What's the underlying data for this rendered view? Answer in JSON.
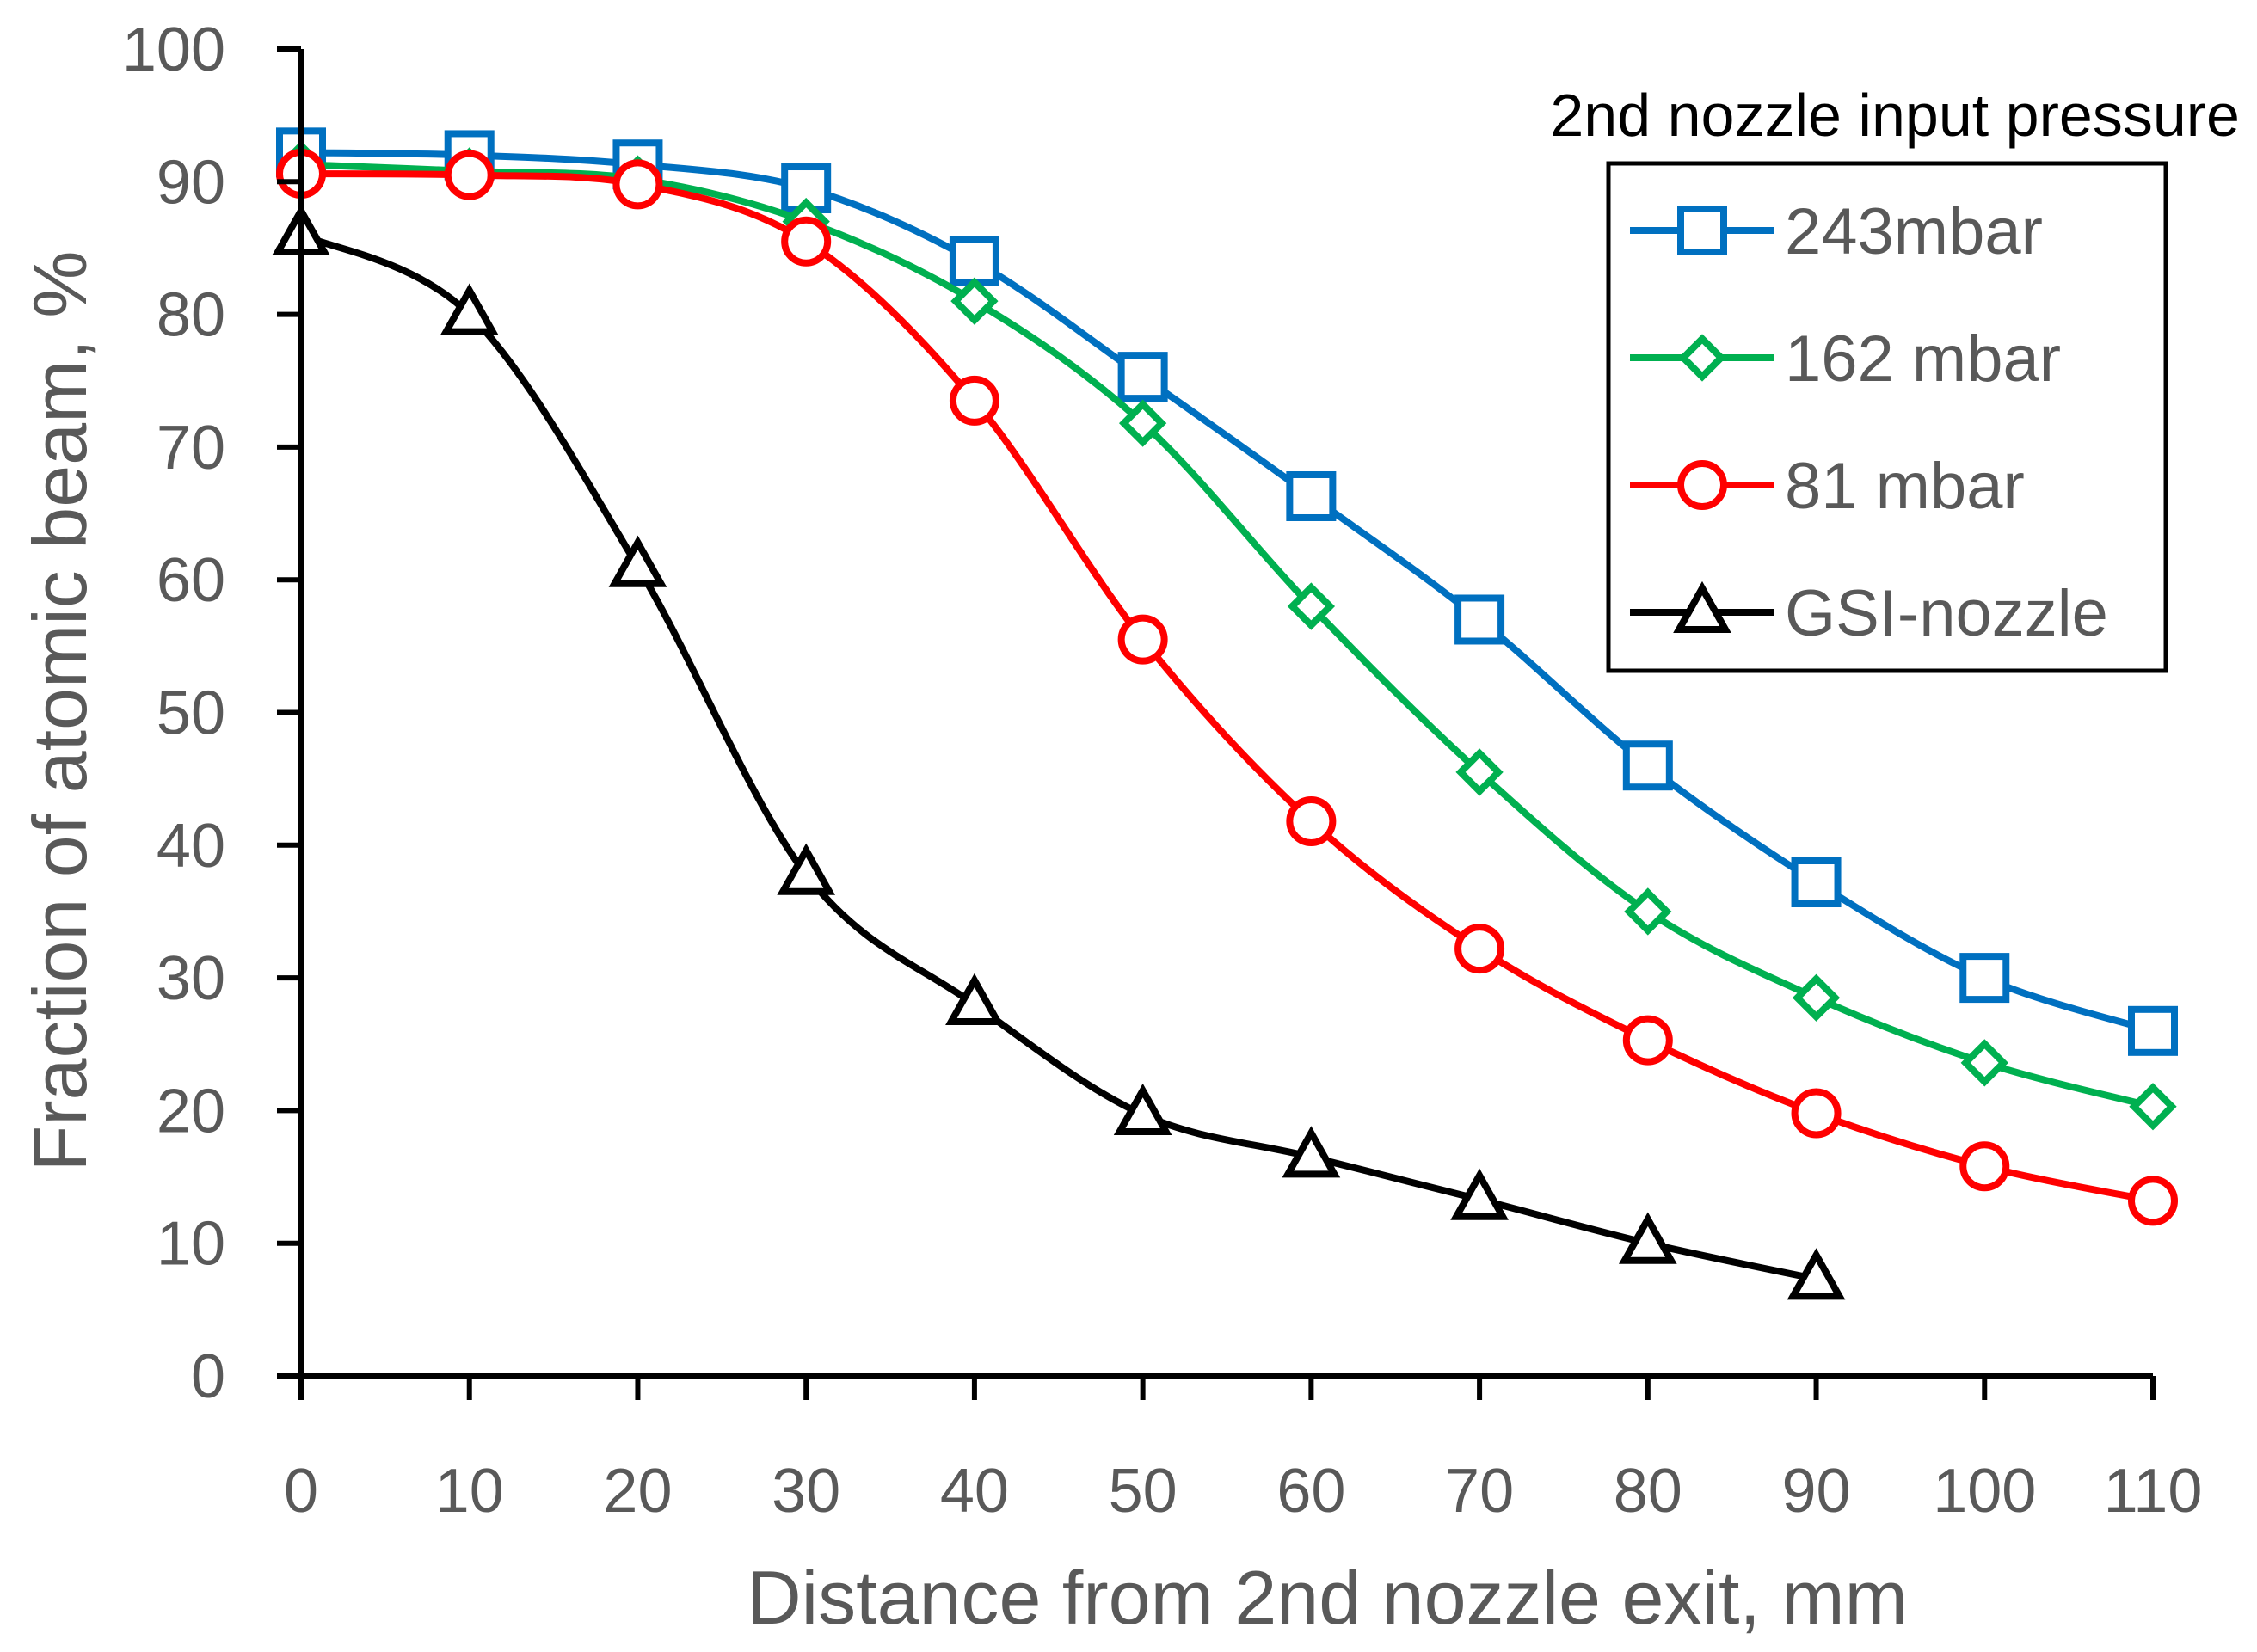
{
  "chart_data": {
    "type": "line",
    "title": "",
    "xlabel": "Distance from 2nd nozzle exit,  mm",
    "ylabel": "Fraction of atomic beam,  %",
    "xlim": [
      0,
      110
    ],
    "ylim": [
      0,
      100
    ],
    "xticks": [
      0,
      10,
      20,
      30,
      40,
      50,
      60,
      70,
      80,
      90,
      100,
      110
    ],
    "yticks": [
      0,
      10,
      20,
      30,
      40,
      50,
      60,
      70,
      80,
      90,
      100
    ],
    "grid": false,
    "legend_title": "2nd nozzle input pressure",
    "legend_position": "top-right",
    "series": [
      {
        "name": "243mbar",
        "color": "#0070C0",
        "marker": "square",
        "x": [
          0,
          10,
          20,
          30,
          40,
          50,
          60,
          70,
          80,
          90,
          100,
          110
        ],
        "values": [
          92.2,
          92.0,
          91.3,
          89.5,
          84.0,
          75.3,
          66.3,
          57.0,
          46.0,
          37.2,
          30.0,
          26.0
        ]
      },
      {
        "name": "162 mbar",
        "color": "#00B050",
        "marker": "diamond",
        "x": [
          0,
          10,
          20,
          30,
          40,
          50,
          60,
          70,
          80,
          90,
          100,
          110
        ],
        "values": [
          91.3,
          90.8,
          90.2,
          87.0,
          81.0,
          71.8,
          58.0,
          45.5,
          35.0,
          28.5,
          23.6,
          20.3
        ]
      },
      {
        "name": "81 mbar",
        "color": "#FF0000",
        "marker": "circle",
        "x": [
          0,
          10,
          20,
          30,
          40,
          50,
          60,
          70,
          80,
          90,
          100,
          110
        ],
        "values": [
          90.6,
          90.5,
          89.8,
          85.5,
          73.5,
          55.5,
          41.8,
          32.2,
          25.3,
          19.8,
          15.8,
          13.2
        ]
      },
      {
        "name": "GSI-nozzle",
        "color": "#000000",
        "marker": "triangle",
        "x": [
          0,
          10,
          20,
          30,
          40,
          50,
          60,
          70,
          80,
          90
        ],
        "values": [
          86.0,
          80.0,
          61.0,
          37.8,
          28.0,
          19.7,
          16.5,
          13.3,
          10.0,
          7.3
        ]
      }
    ]
  }
}
